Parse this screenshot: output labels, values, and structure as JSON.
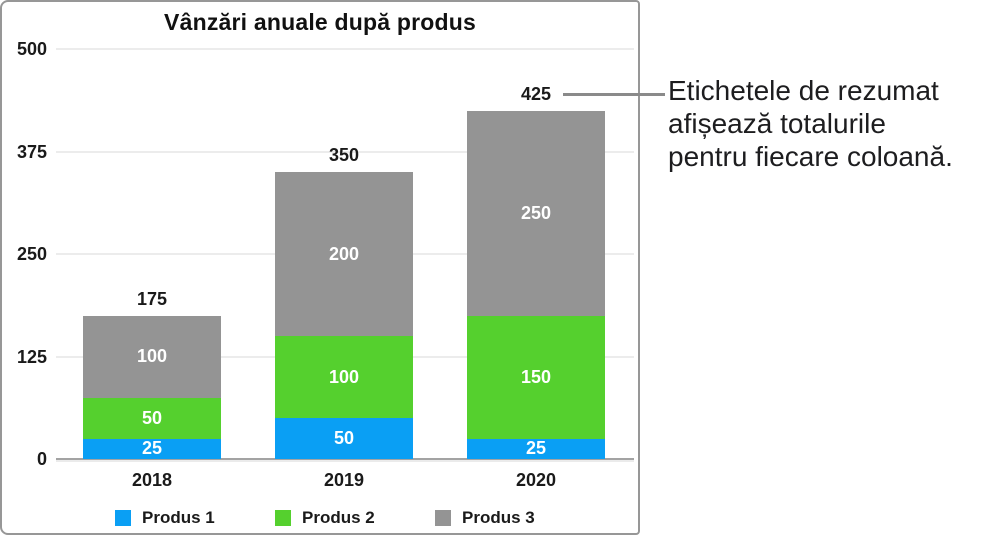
{
  "chart_data": {
    "type": "bar",
    "stacked": true,
    "title": "Vânzări anuale după produs",
    "categories": [
      "2018",
      "2019",
      "2020"
    ],
    "series": [
      {
        "name": "Produs 1",
        "color": "#0A9FF4",
        "values": [
          25,
          50,
          25
        ]
      },
      {
        "name": "Produs 2",
        "color": "#55D02E",
        "values": [
          50,
          100,
          150
        ]
      },
      {
        "name": "Produs 3",
        "color": "#949494",
        "values": [
          100,
          200,
          250
        ]
      }
    ],
    "totals": [
      175,
      350,
      425
    ],
    "y_ticks": [
      0,
      125,
      250,
      375,
      500
    ],
    "ylim": [
      0,
      500
    ],
    "grid": true,
    "legend_position": "bottom",
    "segment_label_color": "#ffffff"
  },
  "callout": {
    "text": "Etichetele de rezumat afișează totalurile pentru fiecare coloană.",
    "lines": [
      "Etichetele de rezumat",
      "afișează totalurile",
      "pentru fiecare coloană."
    ]
  }
}
